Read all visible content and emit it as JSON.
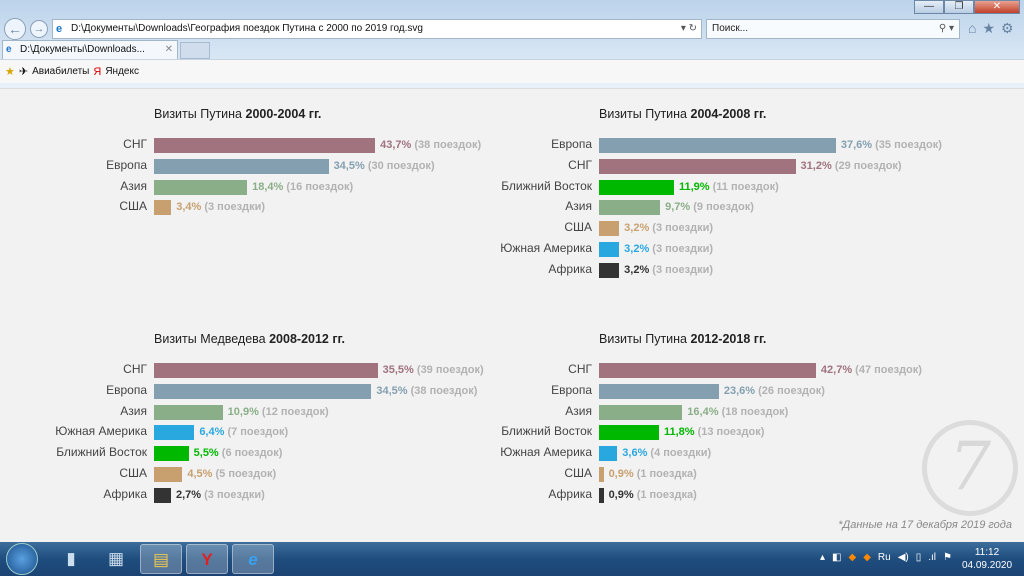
{
  "browser": {
    "address": "D:\\Документы\\Downloads\\География поездок Путина с 2000 по 2019 год.svg",
    "search_placeholder": "Поиск...",
    "tab_label": "D:\\Документы\\Downloads...",
    "favorites": [
      "Авиабилеты",
      "Яндекс"
    ]
  },
  "colors": {
    "СНГ": "#a0737e",
    "Европа": "#84a0b0",
    "Азия": "#8aae88",
    "США": "#c8a070",
    "Ближний Восток": "#00b800",
    "Южная Америка": "#29a8e0",
    "Африка": "#333333"
  },
  "chart_data": [
    {
      "type": "bar",
      "title_prefix": "Визиты Путина ",
      "title_bold": "2000-2004 гг.",
      "categories": [
        "СНГ",
        "Европа",
        "Азия",
        "США"
      ],
      "values": [
        43.7,
        34.5,
        18.4,
        3.4
      ],
      "value_labels": [
        "43,7%",
        "34,5%",
        "18,4%",
        "3,4%"
      ],
      "counts": [
        "(38 поездок)",
        "(30 поездок)",
        "(16 поездок)",
        "(3 поездки)"
      ]
    },
    {
      "type": "bar",
      "title_prefix": "Визиты Путина ",
      "title_bold": "2004-2008 гг.",
      "categories": [
        "Европа",
        "СНГ",
        "Ближний Восток",
        "Азия",
        "США",
        "Южная Америка",
        "Африка"
      ],
      "values": [
        37.6,
        31.2,
        11.9,
        9.7,
        3.2,
        3.2,
        3.2
      ],
      "value_labels": [
        "37,6%",
        "31,2%",
        "11,9%",
        "9,7%",
        "3,2%",
        "3,2%",
        "3,2%"
      ],
      "counts": [
        "(35 поездок)",
        "(29 поездок)",
        "(11 поездок)",
        "(9 поездок)",
        "(3 поездки)",
        "(3 поездки)",
        "(3 поездки)"
      ]
    },
    {
      "type": "bar",
      "title_prefix": "Визиты Медведева ",
      "title_bold": "2008-2012 гг.",
      "categories": [
        "СНГ",
        "Европа",
        "Азия",
        "Южная Америка",
        "Ближний Восток",
        "США",
        "Африка"
      ],
      "values": [
        35.5,
        34.5,
        10.9,
        6.4,
        5.5,
        4.5,
        2.7
      ],
      "value_labels": [
        "35,5%",
        "34,5%",
        "10,9%",
        "6,4%",
        "5,5%",
        "4,5%",
        "2,7%"
      ],
      "counts": [
        "(39 поездок)",
        "(38 поездок)",
        "(12 поездок)",
        "(7 поездок)",
        "(6 поездок)",
        "(5 поездок)",
        "(3 поездки)"
      ]
    },
    {
      "type": "bar",
      "title_prefix": "Визиты Путина ",
      "title_bold": "2012-2018 гг.",
      "categories": [
        "СНГ",
        "Европа",
        "Азия",
        "Ближний Восток",
        "Южная Америка",
        "США",
        "Африка"
      ],
      "values": [
        42.7,
        23.6,
        16.4,
        11.8,
        3.6,
        0.9,
        0.9
      ],
      "value_labels": [
        "42,7%",
        "23,6%",
        "16,4%",
        "11,8%",
        "3,6%",
        "0,9%",
        "0,9%"
      ],
      "counts": [
        "(47 поездок)",
        "(26 поездок)",
        "(18 поездок)",
        "(13 поездок)",
        "(4 поездки)",
        "(1 поездка)",
        "(1 поездка)"
      ]
    }
  ],
  "note": "*Данные на 17 декабря 2019 года",
  "taskbar": {
    "time": "11:12",
    "date": "04.09.2020",
    "lang": "Ru"
  }
}
